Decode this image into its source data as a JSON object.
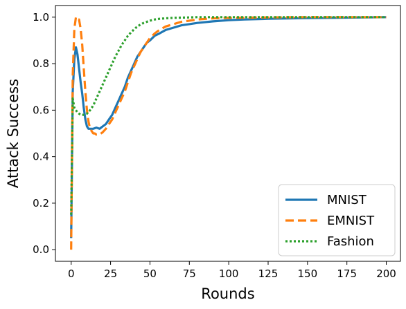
{
  "chart_data": {
    "type": "line",
    "title": "",
    "xlabel": "Rounds",
    "ylabel": "Attack Success",
    "xlim": [
      -10,
      209
    ],
    "ylim": [
      -0.05,
      1.05
    ],
    "xticks": [
      0,
      25,
      50,
      75,
      100,
      125,
      150,
      175,
      200
    ],
    "xtick_labels": [
      "0",
      "25",
      "50",
      "75",
      "100",
      "125",
      "150",
      "175",
      "200"
    ],
    "yticks": [
      0.0,
      0.2,
      0.4,
      0.6,
      0.8,
      1.0
    ],
    "ytick_labels": [
      "0.0",
      "0.2",
      "0.4",
      "0.6",
      "0.8",
      "1.0"
    ],
    "grid": false,
    "legend_position": "lower-right",
    "series": [
      {
        "name": "MNIST",
        "color": "#1f77b4",
        "style": "solid",
        "x": [
          0,
          1,
          2,
          3,
          4,
          5,
          6,
          7,
          8,
          9,
          10,
          11,
          12,
          13,
          14,
          16,
          18,
          20,
          22,
          24,
          26,
          28,
          30,
          32,
          34,
          36,
          38,
          40,
          42,
          44,
          46,
          48,
          50,
          53,
          56,
          60,
          65,
          70,
          75,
          80,
          90,
          100,
          110,
          125,
          150,
          175,
          200
        ],
        "y": [
          0.05,
          0.68,
          0.82,
          0.87,
          0.84,
          0.78,
          0.72,
          0.67,
          0.61,
          0.56,
          0.53,
          0.52,
          0.52,
          0.52,
          0.52,
          0.525,
          0.52,
          0.53,
          0.54,
          0.56,
          0.58,
          0.61,
          0.64,
          0.67,
          0.7,
          0.74,
          0.77,
          0.8,
          0.83,
          0.85,
          0.87,
          0.89,
          0.9,
          0.92,
          0.93,
          0.945,
          0.955,
          0.965,
          0.97,
          0.975,
          0.982,
          0.987,
          0.99,
          0.993,
          0.996,
          0.998,
          1.0
        ]
      },
      {
        "name": "EMNIST",
        "color": "#ff7f0e",
        "style": "dashed",
        "x": [
          0,
          1,
          2,
          3,
          4,
          5,
          6,
          7,
          8,
          9,
          10,
          11,
          12,
          13,
          14,
          15,
          16,
          18,
          20,
          22,
          24,
          26,
          28,
          30,
          32,
          34,
          36,
          38,
          40,
          42,
          44,
          46,
          48,
          50,
          53,
          56,
          60,
          65,
          70,
          75,
          80,
          90,
          100,
          125,
          150,
          175,
          200
        ],
        "y": [
          0.0,
          0.75,
          0.95,
          1.0,
          0.99,
          0.99,
          0.95,
          0.88,
          0.78,
          0.68,
          0.6,
          0.55,
          0.52,
          0.51,
          0.5,
          0.5,
          0.495,
          0.495,
          0.505,
          0.52,
          0.54,
          0.56,
          0.59,
          0.62,
          0.65,
          0.68,
          0.72,
          0.76,
          0.79,
          0.82,
          0.85,
          0.87,
          0.89,
          0.91,
          0.93,
          0.945,
          0.96,
          0.97,
          0.98,
          0.985,
          0.99,
          0.995,
          0.997,
          0.999,
          1.0,
          1.0,
          1.0
        ]
      },
      {
        "name": "Fashion",
        "color": "#2ca02c",
        "style": "dotted",
        "x": [
          0,
          1,
          2,
          3,
          4,
          5,
          6,
          8,
          10,
          12,
          14,
          16,
          18,
          20,
          22,
          24,
          26,
          28,
          30,
          32,
          34,
          36,
          38,
          40,
          42,
          44,
          46,
          48,
          50,
          53,
          56,
          60,
          65,
          70,
          75,
          80,
          90,
          100,
          125,
          150,
          175,
          200
        ],
        "y": [
          0.15,
          0.65,
          0.61,
          0.6,
          0.59,
          0.585,
          0.58,
          0.58,
          0.585,
          0.6,
          0.62,
          0.65,
          0.68,
          0.71,
          0.74,
          0.77,
          0.8,
          0.83,
          0.855,
          0.88,
          0.9,
          0.92,
          0.935,
          0.948,
          0.96,
          0.968,
          0.975,
          0.98,
          0.985,
          0.99,
          0.993,
          0.995,
          0.997,
          0.998,
          0.999,
          1.0,
          1.0,
          1.0,
          1.0,
          1.0,
          1.0,
          1.0
        ]
      }
    ]
  }
}
